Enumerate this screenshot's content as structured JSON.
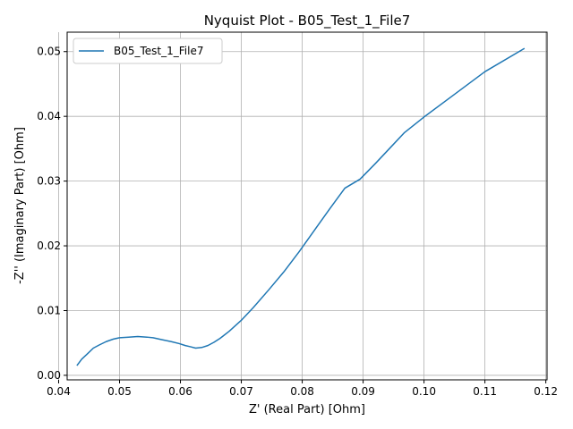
{
  "chart_data": {
    "type": "line",
    "title": "Nyquist Plot - B05_Test_1_File7",
    "xlabel": "Z' (Real Part) [Ohm]",
    "ylabel": "-Z'' (Imaginary Part) [Ohm]",
    "xlim": [
      0.0414,
      0.1202
    ],
    "ylim": [
      -0.0007,
      0.053
    ],
    "xticks": [
      0.04,
      0.05,
      0.06,
      0.07,
      0.08,
      0.09,
      0.1,
      0.11,
      0.12
    ],
    "xtick_labels": [
      "0.04",
      "0.05",
      "0.06",
      "0.07",
      "0.08",
      "0.09",
      "0.10",
      "0.11",
      "0.12"
    ],
    "yticks": [
      0.0,
      0.01,
      0.02,
      0.03,
      0.04,
      0.05
    ],
    "ytick_labels": [
      "0.00",
      "0.01",
      "0.02",
      "0.03",
      "0.04",
      "0.05"
    ],
    "grid": true,
    "legend_position": "upper-left",
    "series": [
      {
        "name": "B05_Test_1_File7",
        "color": "#1f77b4",
        "x": [
          0.043,
          0.0438,
          0.0447,
          0.0457,
          0.0467,
          0.0478,
          0.049,
          0.05,
          0.0515,
          0.053,
          0.0545,
          0.0555,
          0.057,
          0.0585,
          0.0598,
          0.0608,
          0.0617,
          0.0625,
          0.0635,
          0.0645,
          0.0655,
          0.0665,
          0.068,
          0.07,
          0.072,
          0.0745,
          0.077,
          0.0795,
          0.082,
          0.0845,
          0.087,
          0.0895,
          0.092,
          0.0945,
          0.0968,
          0.1,
          0.105,
          0.11,
          0.1165
        ],
        "y": [
          0.0015,
          0.0025,
          0.0033,
          0.0042,
          0.0047,
          0.0052,
          0.0056,
          0.0058,
          0.0059,
          0.006,
          0.0059,
          0.0058,
          0.0055,
          0.0052,
          0.0049,
          0.0046,
          0.0044,
          0.0042,
          0.0043,
          0.0046,
          0.0051,
          0.0057,
          0.0068,
          0.0085,
          0.0105,
          0.0132,
          0.016,
          0.0191,
          0.0224,
          0.0257,
          0.0289,
          0.0303,
          0.0327,
          0.0352,
          0.0375,
          0.0399,
          0.0434,
          0.0469,
          0.0505
        ]
      }
    ]
  }
}
